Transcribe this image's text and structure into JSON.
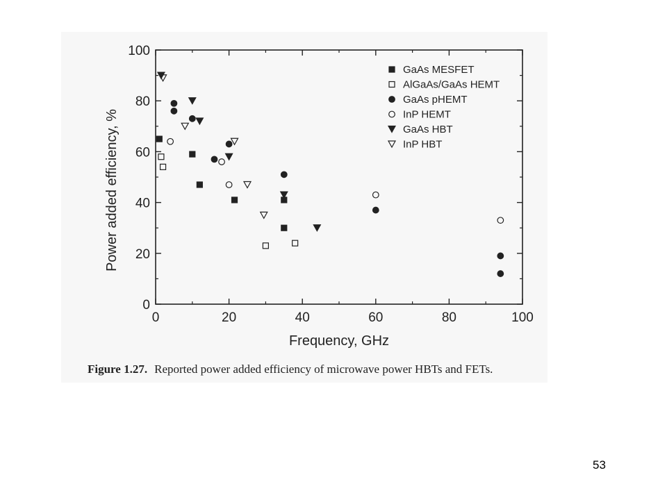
{
  "chart_data": {
    "type": "scatter",
    "xlabel": "Frequency, GHz",
    "ylabel": "Power added efficiency, %",
    "xlim": [
      0,
      100
    ],
    "ylim": [
      0,
      100
    ],
    "xticks": [
      0,
      20,
      40,
      60,
      80,
      100
    ],
    "yticks": [
      0,
      20,
      40,
      60,
      80,
      100
    ],
    "grid": false,
    "legend_position": "top-right",
    "series": [
      {
        "name": "GaAs MESFET",
        "marker": "square-filled",
        "points": [
          [
            1,
            65
          ],
          [
            10,
            59
          ],
          [
            12,
            47
          ],
          [
            21.5,
            41
          ],
          [
            35,
            41
          ],
          [
            35,
            30
          ]
        ]
      },
      {
        "name": "AlGaAs/GaAs HEMT",
        "marker": "square-open",
        "points": [
          [
            1.5,
            58
          ],
          [
            2,
            54
          ],
          [
            30,
            23
          ],
          [
            38,
            24
          ]
        ]
      },
      {
        "name": "GaAs pHEMT",
        "marker": "circle-filled",
        "points": [
          [
            5,
            79
          ],
          [
            5,
            76
          ],
          [
            10,
            73
          ],
          [
            16,
            57
          ],
          [
            20,
            63
          ],
          [
            35,
            51
          ],
          [
            60,
            37
          ],
          [
            94,
            19
          ],
          [
            94,
            12
          ]
        ]
      },
      {
        "name": "InP HEMT",
        "marker": "circle-open",
        "points": [
          [
            4,
            64
          ],
          [
            18,
            56
          ],
          [
            20,
            47
          ],
          [
            60,
            43
          ],
          [
            94,
            33
          ]
        ]
      },
      {
        "name": "GaAs HBT",
        "marker": "triangle-down-filled",
        "points": [
          [
            1.5,
            90
          ],
          [
            10,
            80
          ],
          [
            12,
            72
          ],
          [
            20,
            58
          ],
          [
            35,
            43
          ],
          [
            44,
            30
          ]
        ]
      },
      {
        "name": "InP HBT",
        "marker": "triangle-down-open",
        "points": [
          [
            2,
            89
          ],
          [
            8,
            70
          ],
          [
            21.5,
            64
          ],
          [
            25,
            47
          ],
          [
            29.5,
            35
          ]
        ]
      }
    ]
  },
  "caption": {
    "figure_number": "Figure 1.27.",
    "text": "Reported power added efficiency of microwave power HBTs and FETs."
  },
  "page_number": "53"
}
